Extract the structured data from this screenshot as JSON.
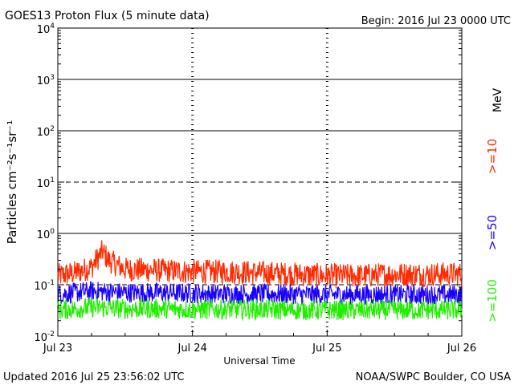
{
  "header": {
    "title": "GOES13 Proton Flux (5 minute data)",
    "begin": "Begin: 2016 Jul 23 0000 UTC"
  },
  "footer": {
    "updated": "Updated 2016 Jul 25 23:56:02 UTC",
    "credit": "NOAA/SWPC Boulder, CO USA"
  },
  "chart_data": {
    "type": "line",
    "title": "GOES13 Proton Flux (5 minute data)",
    "xlabel": "Universal Time",
    "ylabel": "Particles cm⁻²s⁻¹sr⁻¹",
    "yscale": "log",
    "ylim": [
      0.01,
      10000
    ],
    "xlim": [
      "2016-07-23",
      "2016-07-26"
    ],
    "x_ticks": [
      {
        "value": "2016-07-23",
        "label": "Jul 23"
      },
      {
        "value": "2016-07-24",
        "label": "Jul 24"
      },
      {
        "value": "2016-07-25",
        "label": "Jul 25"
      },
      {
        "value": "2016-07-26",
        "label": "Jul 26"
      }
    ],
    "y_ticks": [
      {
        "value": 0.01,
        "base": "10",
        "exp": "-2"
      },
      {
        "value": 0.1,
        "base": "10",
        "exp": "-1"
      },
      {
        "value": 1,
        "base": "10",
        "exp": "0"
      },
      {
        "value": 10,
        "base": "10",
        "exp": "1"
      },
      {
        "value": 100,
        "base": "10",
        "exp": "2"
      },
      {
        "value": 1000,
        "base": "10",
        "exp": "3"
      },
      {
        "value": 10000,
        "base": "10",
        "exp": "4"
      }
    ],
    "unit_label": "MeV",
    "series": [
      {
        "name": ">=10",
        "color": "#ff2a00",
        "x": [
          "2016-07-23 00:00",
          "2016-07-23 03:00",
          "2016-07-23 06:00",
          "2016-07-23 08:00",
          "2016-07-23 09:00",
          "2016-07-23 12:00",
          "2016-07-23 18:00",
          "2016-07-24 00:00",
          "2016-07-24 06:00",
          "2016-07-24 12:00",
          "2016-07-24 18:00",
          "2016-07-25 00:00",
          "2016-07-25 06:00",
          "2016-07-25 12:00",
          "2016-07-25 18:00",
          "2016-07-26 00:00"
        ],
        "values": [
          0.15,
          0.17,
          0.22,
          0.45,
          0.3,
          0.2,
          0.19,
          0.18,
          0.18,
          0.17,
          0.16,
          0.15,
          0.15,
          0.16,
          0.16,
          0.16
        ]
      },
      {
        "name": ">=50",
        "color": "#1a00ff",
        "x": [
          "2016-07-23 00:00",
          "2016-07-23 06:00",
          "2016-07-23 12:00",
          "2016-07-23 18:00",
          "2016-07-24 00:00",
          "2016-07-24 06:00",
          "2016-07-24 12:00",
          "2016-07-24 18:00",
          "2016-07-25 00:00",
          "2016-07-25 06:00",
          "2016-07-25 12:00",
          "2016-07-25 18:00",
          "2016-07-26 00:00"
        ],
        "values": [
          0.065,
          0.075,
          0.07,
          0.07,
          0.068,
          0.066,
          0.066,
          0.065,
          0.064,
          0.064,
          0.064,
          0.064,
          0.064
        ]
      },
      {
        "name": ">=100",
        "color": "#22ee00",
        "x": [
          "2016-07-23 00:00",
          "2016-07-23 06:00",
          "2016-07-23 12:00",
          "2016-07-23 18:00",
          "2016-07-24 00:00",
          "2016-07-24 06:00",
          "2016-07-24 12:00",
          "2016-07-24 18:00",
          "2016-07-25 00:00",
          "2016-07-25 06:00",
          "2016-07-25 12:00",
          "2016-07-25 18:00",
          "2016-07-26 00:00"
        ],
        "values": [
          0.032,
          0.036,
          0.034,
          0.034,
          0.033,
          0.033,
          0.033,
          0.032,
          0.032,
          0.032,
          0.032,
          0.032,
          0.032
        ]
      }
    ],
    "grid": true,
    "legend": "right-vertical"
  }
}
